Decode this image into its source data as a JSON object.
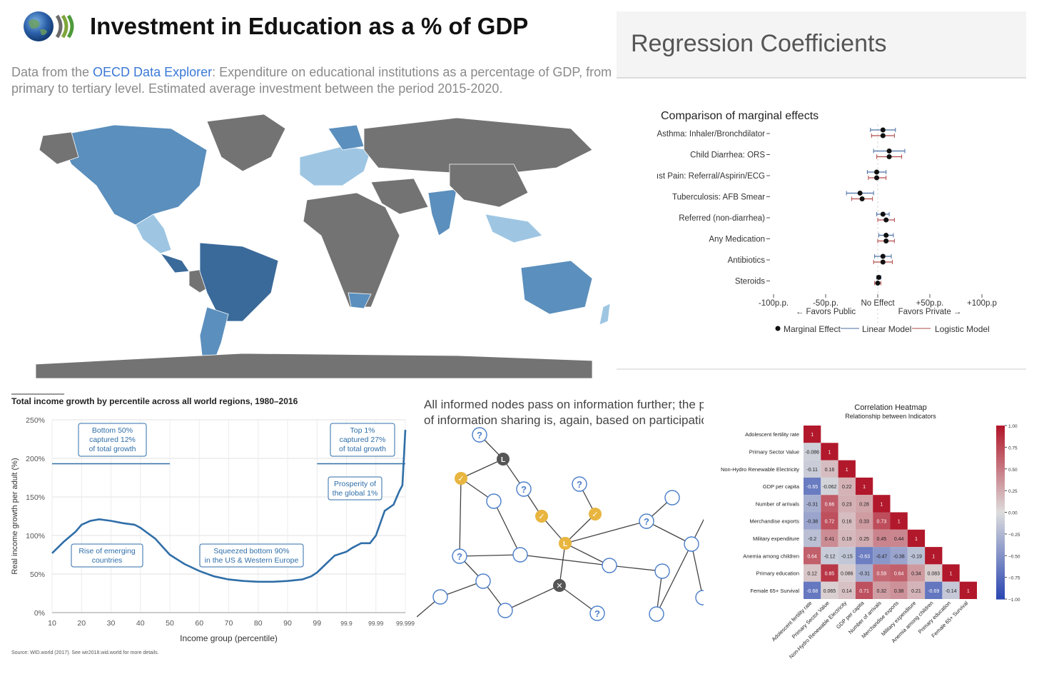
{
  "map": {
    "title": "Investment in Education as a % of GDP",
    "desc_prefix": "Data from the ",
    "desc_link": "OECD Data Explorer",
    "desc_rest": ": Expenditure on educational institutions as a percentage of GDP, from primary to tertiary level. Estimated average investment between the period 2015-2020.",
    "colors": {
      "no_data": "#737373",
      "light": "#9ec6e3",
      "mid": "#5b8fbd",
      "dark": "#3a6a9a",
      "ocean": "#ffffff"
    }
  },
  "regression": {
    "heading": "Regression Coefficients"
  },
  "income": {
    "note": "Source: WID.world (2017). See wir2018.wid.world for more details."
  },
  "network": {
    "caption_line1": "All informed nodes pass on information further; the proba",
    "caption_line2": "of information sharing is, again, based on participation.",
    "colors": {
      "node": "#4a7ec9",
      "informed": "#e8b53f",
      "leader": "#555555"
    }
  },
  "chart_data": [
    {
      "type": "scatter",
      "title": "Comparison of marginal effects",
      "categories": [
        "Asthma: Inhaler/Bronchdilator",
        "Child Diarrhea: ORS",
        "ıst Pain: Referral/Aspirin/ECG",
        "Tuberculosis: AFB Smear",
        "Referred (non-diarrhea)",
        "Any Medication",
        "Antibiotics",
        "Steroids"
      ],
      "x_tick_labels": [
        "-100p.p.",
        "-50p.p.",
        "No Effect",
        "+50p.p.",
        "+100p.p"
      ],
      "x_ticks": [
        -100,
        -50,
        0,
        50,
        100
      ],
      "direction_labels": [
        "← Favors Public",
        "Favors Private →"
      ],
      "xlim": [
        -110,
        110
      ],
      "series": [
        {
          "name": "Linear Model",
          "color": "#4a6fa5",
          "points": [
            5,
            11,
            -1,
            -17,
            5,
            8,
            5,
            1
          ],
          "lo": [
            -7,
            -4,
            -10,
            -30,
            -1,
            1,
            -3,
            -1
          ],
          "hi": [
            17,
            26,
            8,
            -4,
            11,
            15,
            13,
            3
          ]
        },
        {
          "name": "Logistic Model",
          "color": "#b24a4a",
          "points": [
            5,
            11,
            -1,
            -15,
            8,
            8,
            5,
            0
          ],
          "lo": [
            -6,
            -1,
            -9,
            -25,
            0,
            0,
            -4,
            -3
          ],
          "hi": [
            16,
            23,
            8,
            -5,
            16,
            16,
            14,
            3
          ]
        }
      ],
      "legend": [
        "Marginal Effect",
        "Linear Model",
        "Logistic Model"
      ]
    },
    {
      "type": "line",
      "title": "Total income growth by percentile across all world regions, 1980–2016",
      "xlabel": "Income group (percentile)",
      "ylabel": "Real income growth per adult (%)",
      "x_tick_labels": [
        "10",
        "20",
        "30",
        "40",
        "50",
        "60",
        "70",
        "80",
        "90",
        "99",
        "99.9",
        "99.99",
        "99.999"
      ],
      "y_tick_labels": [
        "0%",
        "50%",
        "100%",
        "150%",
        "200%",
        "250%"
      ],
      "ylim": [
        0,
        250
      ],
      "x_index": [
        0,
        0.4,
        0.8,
        1,
        1.3,
        1.6,
        2,
        2.4,
        2.8,
        3,
        3.5,
        4,
        4.5,
        5,
        5.5,
        6,
        6.5,
        7,
        7.5,
        8,
        8.5,
        8.8,
        9,
        9.3,
        9.6,
        10,
        10.2,
        10.5,
        10.8,
        11,
        11.3,
        11.6,
        11.8,
        11.9,
        12
      ],
      "values": [
        77,
        92,
        105,
        114,
        119,
        121,
        119,
        116,
        114,
        110,
        96,
        75,
        63,
        54,
        47,
        43,
        41,
        40,
        40,
        41,
        43,
        47,
        52,
        63,
        74,
        79,
        84,
        90,
        90,
        100,
        132,
        140,
        158,
        165,
        237
      ],
      "annotations": [
        {
          "lines": [
            "Bottom 50%",
            "captured 12%",
            "of total growth"
          ]
        },
        {
          "lines": [
            "Top 1%",
            "captured 27%",
            "of total growth"
          ]
        },
        {
          "lines": [
            "Prosperity of",
            "the global 1%"
          ]
        },
        {
          "lines": [
            "Rise of emerging",
            "countries"
          ]
        },
        {
          "lines": [
            "Squeezed bottom 90%",
            "in the US & Western Europe"
          ]
        }
      ]
    },
    {
      "type": "heatmap",
      "title": "Correlation Heatmap",
      "subtitle": "Relationship between Indicators",
      "labels": [
        "Adolescent fertility rate",
        "Primary Sector Value",
        "Non-Hydro Renewable Electricity",
        "GDP per capita",
        "Number of arrivals",
        "Merchandise exports",
        "Military expenditure",
        "Anemia among children",
        "Primary education",
        "Female 65+ Survival"
      ],
      "values": [
        [
          "1"
        ],
        [
          "-0.086",
          "1"
        ],
        [
          "-0.11",
          "0.16",
          "1"
        ],
        [
          "-0.65",
          "-0.062",
          "0.22",
          "1"
        ],
        [
          "-0.31",
          "0.66",
          "0.23",
          "0.28",
          "1"
        ],
        [
          "-0.38",
          "0.72",
          "0.16",
          "0.33",
          "0.73",
          "1"
        ],
        [
          "-0.2",
          "0.41",
          "0.19",
          "0.25",
          "0.45",
          "0.44",
          "1"
        ],
        [
          "0.64",
          "-0.12",
          "-0.15",
          "-0.63",
          "-0.47",
          "-0.38",
          "-0.19",
          "1"
        ],
        [
          "0.12",
          "0.85",
          "0.086",
          "-0.31",
          "0.59",
          "0.64",
          "0.34",
          "0.083",
          "1"
        ],
        [
          "-0.68",
          "0.065",
          "0.14",
          "0.71",
          "0.32",
          "0.38",
          "0.21",
          "-0.69",
          "-0.14",
          "1"
        ]
      ],
      "colorbar_ticks": [
        "1.00",
        "0.75",
        "0.50",
        "0.25",
        "0.00",
        "−0.25",
        "−0.50",
        "−0.75",
        "−1.00"
      ],
      "vlim": [
        -1,
        1
      ]
    }
  ]
}
